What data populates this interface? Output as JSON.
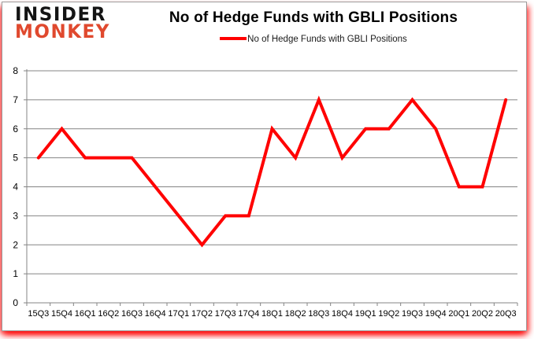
{
  "brand": {
    "line1": "INSIDER",
    "line2": "MONKEY",
    "line1_color": "#141414",
    "line2_color": "#e0492e"
  },
  "header": {
    "title": "No of Hedge Funds with GBLI Positions"
  },
  "legend": {
    "label": "No of Hedge Funds with GBLI Positions",
    "line_color": "#ff0000"
  },
  "chart_data": {
    "type": "line",
    "title": "No of Hedge Funds with GBLI Positions",
    "categories": [
      "15Q3",
      "15Q4",
      "16Q1",
      "16Q2",
      "16Q3",
      "16Q4",
      "17Q1",
      "17Q2",
      "17Q3",
      "17Q4",
      "18Q1",
      "18Q2",
      "18Q3",
      "18Q4",
      "19Q1",
      "19Q2",
      "19Q3",
      "19Q4",
      "20Q1",
      "20Q2",
      "20Q3"
    ],
    "series": [
      {
        "name": "No of Hedge Funds with GBLI Positions",
        "color": "#ff0000",
        "values": [
          5,
          6,
          5,
          5,
          5,
          4,
          3,
          2,
          3,
          3,
          6,
          5,
          7,
          5,
          6,
          6,
          7,
          6,
          4,
          4,
          7
        ]
      }
    ],
    "xlabel": "",
    "ylabel": "",
    "ylim": [
      0,
      8
    ],
    "ytick_interval": 1,
    "ytick_labels": [
      "0",
      "1",
      "2",
      "3",
      "4",
      "5",
      "6",
      "7",
      "8"
    ],
    "grid": "horizontal",
    "legend_position": "top"
  },
  "colors": {
    "grid": "#848484",
    "axis": "#848484",
    "text": "#000000",
    "card_border": "#9b9b9b",
    "glow": "#ff0000",
    "background": "#ffffff"
  }
}
